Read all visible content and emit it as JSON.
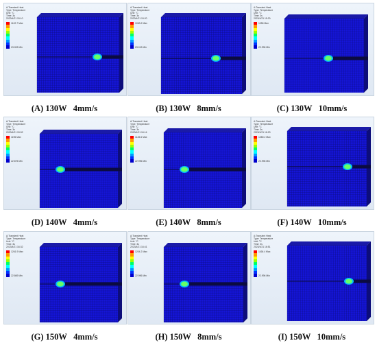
{
  "panels": [
    {
      "caption": "(A) 130W   4mm/s",
      "hdr": [
        "A:Transient Heat",
        "Type: Temperature",
        "Unit: °C",
        "Time: 3s",
        "2023/4/21 15:10"
      ],
      "max": "1122.7 Max",
      "min": "23.003 Min"
    },
    {
      "caption": "(B) 130W   8mm/s",
      "hdr": [
        "A:Transient Heat",
        "Type: Temperature",
        "Unit: °C",
        "Time: 3s",
        "2023/4/21 15:20"
      ],
      "max": "1063.2 Max",
      "min": "23.013 Min"
    },
    {
      "caption": "(C) 130W   10mm/s",
      "hdr": [
        "A:Transient Heat",
        "Type: Temperature",
        "Unit: °C",
        "Time: 3s",
        "2023/4/21 15:30"
      ],
      "max": "1056 Max",
      "min": "22.996 Min"
    },
    {
      "caption": "(D) 140W   4mm/s",
      "hdr": [
        "A:Transient Heat",
        "Type: Temperature",
        "Unit: °C",
        "Time: 3s",
        "2023/4/21 15:52"
      ],
      "max": "1196 Max",
      "min": "22.875 Min"
    },
    {
      "caption": "(E) 140W   8mm/s",
      "hdr": [
        "A:Transient Heat",
        "Type: Temperature",
        "Unit: °C",
        "Time: 3s",
        "2023/4/21 16:14"
      ],
      "max": "1145.6 Max",
      "min": "22.996 Min"
    },
    {
      "caption": "(F) 140W   10mm/s",
      "hdr": [
        "A:Transient Heat",
        "Type: Temperature",
        "Unit: °C",
        "Time: 3s",
        "2023/4/21 16:23"
      ],
      "max": "1080.2 Max",
      "min": "22.996 Min"
    },
    {
      "caption": "(G) 150W   4mm/s",
      "hdr": [
        "A:Transient Heat",
        "Type: Temperature",
        "Unit: °C",
        "Time: 3s",
        "2023/4/21 16:32"
      ],
      "max": "1261.9 Max",
      "min": "22.869 Min"
    },
    {
      "caption": "(H) 150W   8mm/s",
      "hdr": [
        "A:Transient Heat",
        "Type: Temperature",
        "Unit: °C",
        "Time: 3s",
        "2023/4/21 16:41"
      ],
      "max": "1204.2 Max",
      "min": "22.996 Min"
    },
    {
      "caption": "(I) 150W   10mm/s",
      "hdr": [
        "A:Transient Heat",
        "Type: Temperature",
        "Unit: °C",
        "Time: 3s",
        "2023/4/21 16:51"
      ],
      "max": "1166.4 Max",
      "min": "22.996 Min"
    }
  ],
  "scale_colors": [
    "#ff0000",
    "#ff9900",
    "#ffff00",
    "#99ff00",
    "#00ff66",
    "#00ffff",
    "#0099ff",
    "#0033ff",
    "#0000cc"
  ],
  "palette": {
    "cube_top": "#1a1aa8",
    "cube_front": "#1515d8",
    "cube_side": "#0d0d7a",
    "mesh": "#0a0a55",
    "weld_track": "#0b0b40",
    "pool_hot": "#66ff66",
    "pool_edge": "#00bbff"
  }
}
